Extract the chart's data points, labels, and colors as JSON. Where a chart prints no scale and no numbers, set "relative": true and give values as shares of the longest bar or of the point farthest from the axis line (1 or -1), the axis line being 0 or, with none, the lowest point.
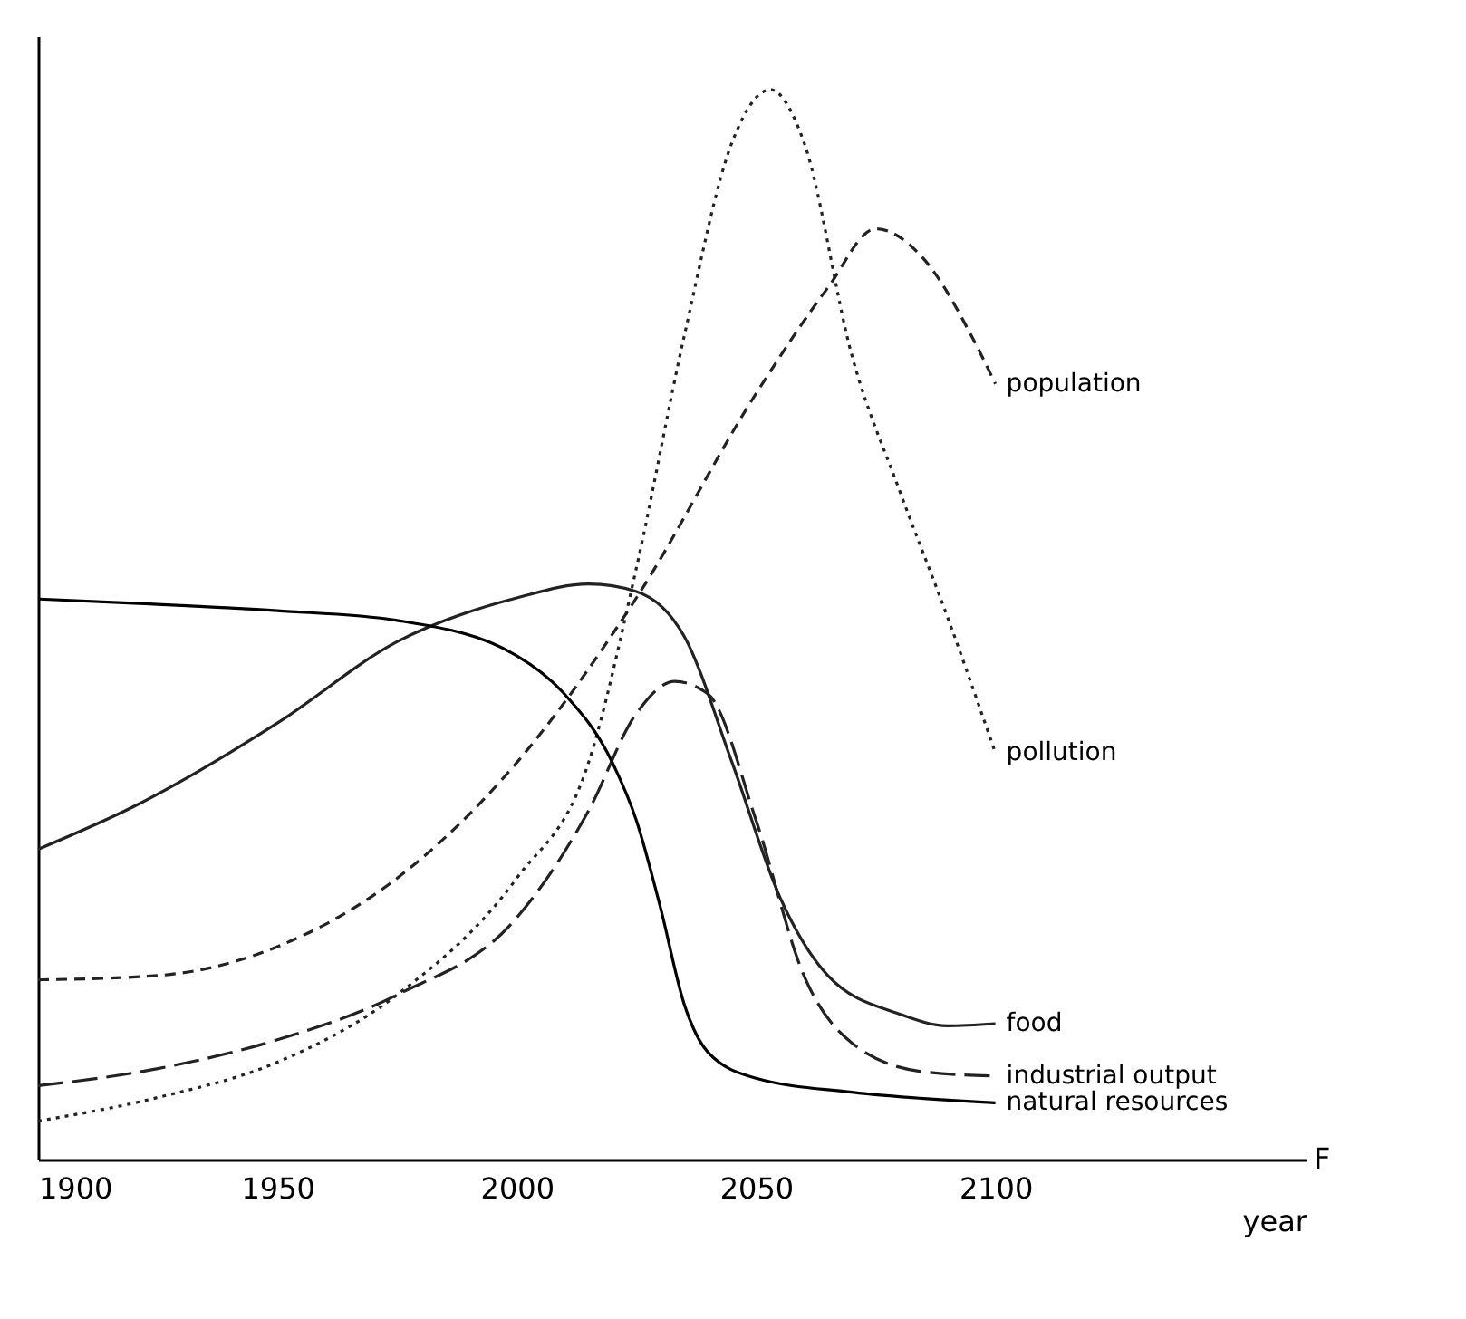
{
  "chart_data": {
    "type": "line",
    "relative": true,
    "xlabel": "year",
    "xlim": [
      1900,
      2165
    ],
    "xticks": [
      1900,
      1950,
      2000,
      2050,
      2100
    ],
    "grid": false,
    "legend": false,
    "marker": "none",
    "annotations": [
      "F"
    ],
    "series": [
      {
        "name": "population",
        "color": "#222222",
        "line_style": "dashed",
        "x": [
          1900,
          1925,
          1950,
          1975,
          2000,
          2025,
          2050,
          2065,
          2075,
          2085,
          2095,
          2100
        ],
        "values": [
          0.168,
          0.172,
          0.199,
          0.263,
          0.371,
          0.525,
          0.716,
          0.815,
          0.87,
          0.842,
          0.77,
          0.725
        ]
      },
      {
        "name": "pollution",
        "color": "#222222",
        "line_style": "dotted",
        "x": [
          1900,
          1925,
          1950,
          1975,
          2000,
          2015,
          2025,
          2035,
          2045,
          2053,
          2060,
          2070,
          2080,
          2090,
          2100
        ],
        "values": [
          0.036,
          0.058,
          0.091,
          0.154,
          0.263,
          0.371,
          0.553,
          0.77,
          0.951,
          1,
          0.951,
          0.752,
          0.625,
          0.507,
          0.38
        ]
      },
      {
        "name": "food",
        "color": "#222222",
        "line_style": "solid",
        "x": [
          1900,
          1920,
          1950,
          1975,
          2000,
          2015,
          2025,
          2035,
          2045,
          2055,
          2065,
          2080,
          2090,
          2100
        ],
        "values": [
          0.29,
          0.33,
          0.408,
          0.484,
          0.525,
          0.538,
          0.531,
          0.489,
          0.371,
          0.245,
          0.172,
          0.136,
          0.125,
          0.127
        ]
      },
      {
        "name": "industrial output",
        "color": "#222222",
        "line_style": "longdash",
        "x": [
          1900,
          1925,
          1950,
          1975,
          2000,
          2015,
          2025,
          2033,
          2040,
          2050,
          2060,
          2070,
          2085,
          2100
        ],
        "values": [
          0.069,
          0.085,
          0.112,
          0.154,
          0.226,
          0.326,
          0.417,
          0.447,
          0.435,
          0.317,
          0.172,
          0.109,
          0.082,
          0.078
        ]
      },
      {
        "name": "natural resources",
        "color": "#000000",
        "line_style": "solid",
        "x": [
          1900,
          1920,
          1950,
          1975,
          2000,
          2010,
          2020,
          2025,
          2030,
          2035,
          2040,
          2050,
          2070,
          2100
        ],
        "values": [
          0.524,
          0.52,
          0.513,
          0.504,
          0.471,
          0.435,
          0.371,
          0.317,
          0.236,
          0.145,
          0.1,
          0.076,
          0.063,
          0.053
        ]
      }
    ]
  }
}
